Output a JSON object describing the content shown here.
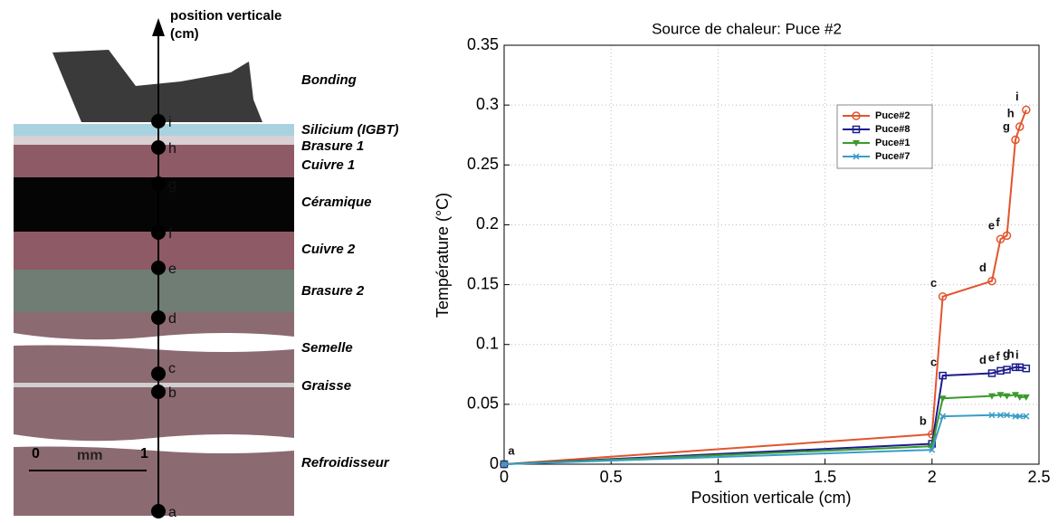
{
  "diagram": {
    "axis_label": "position verticale",
    "axis_unit": "(cm)",
    "layers": [
      "Bonding",
      "Silicium (IGBT)",
      "Brasure 1",
      "Cuivre 1",
      "Céramique",
      "Cuivre 2",
      "Brasure 2",
      "Semelle",
      "Graisse",
      "Refroidisseur"
    ],
    "points": [
      "i",
      "h",
      "g",
      "f",
      "e",
      "d",
      "c",
      "b",
      "a"
    ],
    "scale": {
      "start": 0,
      "unit": "mm",
      "end": 1
    }
  },
  "chart_data": {
    "type": "line",
    "title": "Source de chaleur: Puce #2",
    "x_label": "Position verticale (cm)",
    "y_label": "Température (°C)",
    "x": [
      0,
      2.0,
      2.05,
      2.28,
      2.32,
      2.35,
      2.39,
      2.41,
      2.44
    ],
    "series": [
      {
        "name": "Puce#2",
        "color": "#e2552e",
        "marker": "circle",
        "values": [
          0,
          0.025,
          0.14,
          0.153,
          0.188,
          0.191,
          0.271,
          0.282,
          0.296
        ],
        "point_labels": [
          "a",
          "b",
          "c",
          "d",
          "e",
          "f",
          "g",
          "h",
          "i"
        ]
      },
      {
        "name": "Puce#8",
        "color": "#1c1c8e",
        "marker": "square",
        "values": [
          0,
          0.017,
          0.074,
          0.076,
          0.078,
          0.079,
          0.081,
          0.081,
          0.08
        ],
        "point_labels": [
          null,
          null,
          "c",
          "d",
          "e",
          "f",
          "g",
          "h",
          "i"
        ]
      },
      {
        "name": "Puce#1",
        "color": "#3c9a2c",
        "marker": "triangle",
        "values": [
          0,
          0.015,
          0.055,
          0.057,
          0.058,
          0.057,
          0.058,
          0.056,
          0.056
        ]
      },
      {
        "name": "Puce#7",
        "color": "#3a9cc8",
        "marker": "x",
        "values": [
          0,
          0.012,
          0.04,
          0.041,
          0.041,
          0.041,
          0.04,
          0.04,
          0.04
        ]
      }
    ],
    "xlim": [
      0,
      2.5
    ],
    "ylim": [
      0,
      0.35
    ],
    "xticks": [
      0,
      0.5,
      1,
      1.5,
      2,
      2.5
    ],
    "yticks": [
      0,
      0.05,
      0.1,
      0.15,
      0.2,
      0.25,
      0.3,
      0.35
    ],
    "grid": true,
    "legend": "upper right"
  }
}
